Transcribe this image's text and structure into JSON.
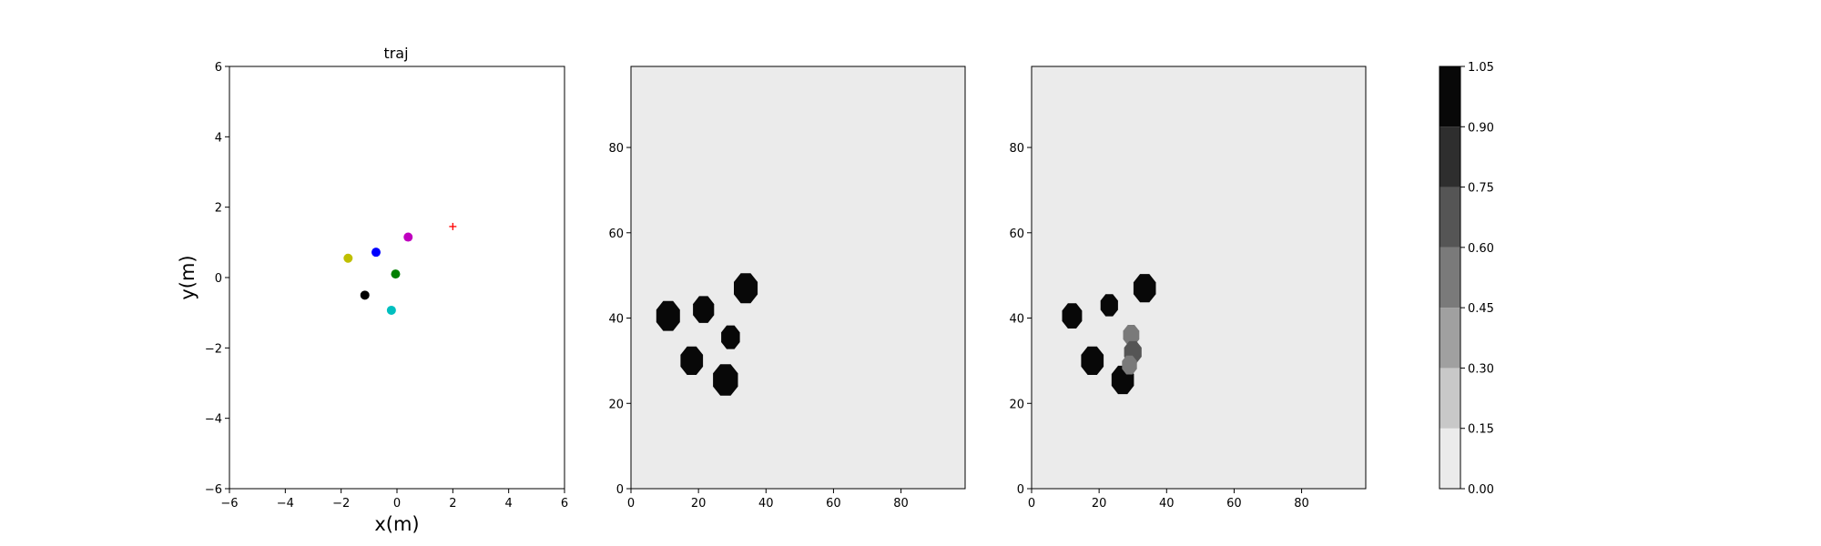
{
  "chart_data": [
    {
      "type": "scatter",
      "title": "traj",
      "xlabel": "x(m)",
      "ylabel": "y(m)",
      "xlim": [
        -6,
        6
      ],
      "ylim": [
        -6,
        6
      ],
      "xticks": [
        -6,
        -4,
        -2,
        0,
        2,
        4,
        6
      ],
      "yticks": [
        -6,
        -4,
        -2,
        0,
        2,
        4,
        6
      ],
      "grid": false,
      "points": [
        {
          "x": -1.75,
          "y": 0.55,
          "color": "#bfbf00",
          "marker": "circle"
        },
        {
          "x": -0.75,
          "y": 0.72,
          "color": "#0000ff",
          "marker": "circle"
        },
        {
          "x": 0.4,
          "y": 1.15,
          "color": "#bf00bf",
          "marker": "circle"
        },
        {
          "x": -0.05,
          "y": 0.1,
          "color": "#008000",
          "marker": "circle"
        },
        {
          "x": -1.15,
          "y": -0.5,
          "color": "#000000",
          "marker": "circle"
        },
        {
          "x": -0.2,
          "y": -0.93,
          "color": "#00bfbf",
          "marker": "circle"
        },
        {
          "x": 2.0,
          "y": 1.45,
          "color": "#ff0000",
          "marker": "plus"
        }
      ]
    },
    {
      "type": "heatmap",
      "title": "",
      "xlim": [
        0,
        99
      ],
      "ylim": [
        0,
        99
      ],
      "xticks": [
        0,
        20,
        40,
        60,
        80
      ],
      "yticks": [
        0,
        20,
        40,
        60,
        80
      ],
      "background_value": 0.05,
      "blobs": [
        {
          "x": 11,
          "y": 40.5,
          "r": 3.8,
          "value": 1.0
        },
        {
          "x": 21.5,
          "y": 42,
          "r": 3.4,
          "value": 1.0
        },
        {
          "x": 34,
          "y": 47,
          "r": 3.8,
          "value": 1.0
        },
        {
          "x": 29.5,
          "y": 35.5,
          "r": 3.0,
          "value": 1.0
        },
        {
          "x": 18,
          "y": 30,
          "r": 3.6,
          "value": 1.0
        },
        {
          "x": 28,
          "y": 25.5,
          "r": 4.0,
          "value": 1.0
        }
      ]
    },
    {
      "type": "heatmap",
      "title": "",
      "xlim": [
        0,
        99
      ],
      "ylim": [
        0,
        99
      ],
      "xticks": [
        0,
        20,
        40,
        60,
        80
      ],
      "yticks": [
        0,
        20,
        40,
        60,
        80
      ],
      "background_value": 0.05,
      "blobs": [
        {
          "x": 12,
          "y": 40.5,
          "r": 3.2,
          "value": 1.0
        },
        {
          "x": 23,
          "y": 43,
          "r": 2.8,
          "value": 1.0
        },
        {
          "x": 33.5,
          "y": 47,
          "r": 3.6,
          "value": 1.0
        },
        {
          "x": 18,
          "y": 30,
          "r": 3.6,
          "value": 1.0
        },
        {
          "x": 27,
          "y": 25.5,
          "r": 3.6,
          "value": 1.0
        },
        {
          "x": 29.5,
          "y": 36,
          "r": 2.6,
          "value": 0.45
        },
        {
          "x": 30,
          "y": 32,
          "r": 2.8,
          "value": 0.6
        },
        {
          "x": 29,
          "y": 29,
          "r": 2.4,
          "value": 0.5
        }
      ]
    }
  ],
  "colorbar": {
    "levels": [
      0.0,
      0.15,
      0.3,
      0.45,
      0.6,
      0.75,
      0.9,
      1.05
    ],
    "tick_labels": [
      "0.00",
      "0.15",
      "0.30",
      "0.45",
      "0.60",
      "0.75",
      "0.90",
      "1.05"
    ],
    "colors": [
      "#ebebeb",
      "#c8c8c8",
      "#a0a0a0",
      "#7a7a7a",
      "#555555",
      "#2e2e2e",
      "#080808"
    ]
  }
}
